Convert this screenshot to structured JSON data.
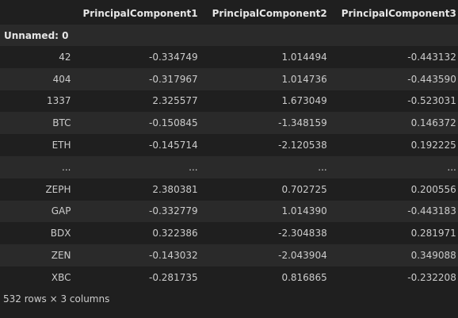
{
  "table": {
    "index_name": "Unnamed: 0",
    "columns": [
      "PrincipalComponent1",
      "PrincipalComponent2",
      "PrincipalComponent3"
    ],
    "rows": [
      {
        "index": "42",
        "values": [
          "-0.334749",
          "1.014494",
          "-0.443132"
        ]
      },
      {
        "index": "404",
        "values": [
          "-0.317967",
          "1.014736",
          "-0.443590"
        ]
      },
      {
        "index": "1337",
        "values": [
          "2.325577",
          "1.673049",
          "-0.523031"
        ]
      },
      {
        "index": "BTC",
        "values": [
          "-0.150845",
          "-1.348159",
          "0.146372"
        ]
      },
      {
        "index": "ETH",
        "values": [
          "-0.145714",
          "-2.120538",
          "0.192225"
        ]
      },
      {
        "index": "...",
        "values": [
          "...",
          "...",
          "..."
        ]
      },
      {
        "index": "ZEPH",
        "values": [
          "2.380381",
          "0.702725",
          "0.200556"
        ]
      },
      {
        "index": "GAP",
        "values": [
          "-0.332779",
          "1.014390",
          "-0.443183"
        ]
      },
      {
        "index": "BDX",
        "values": [
          "0.322386",
          "-2.304838",
          "0.281971"
        ]
      },
      {
        "index": "ZEN",
        "values": [
          "-0.143032",
          "-2.043904",
          "0.349088"
        ]
      },
      {
        "index": "XBC",
        "values": [
          "-0.281735",
          "0.816865",
          "-0.232208"
        ]
      }
    ],
    "summary": "532 rows × 3 columns"
  }
}
